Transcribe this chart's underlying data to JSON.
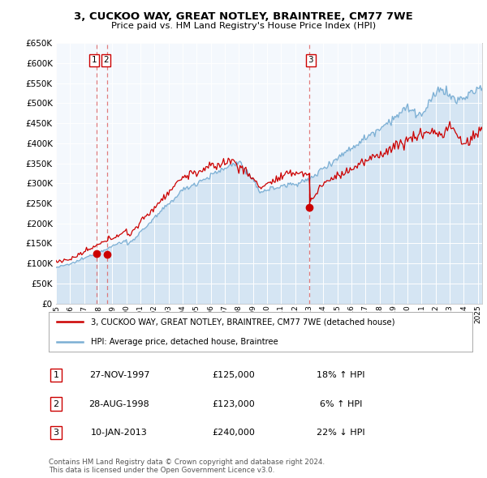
{
  "title": "3, CUCKOO WAY, GREAT NOTLEY, BRAINTREE, CM77 7WE",
  "subtitle": "Price paid vs. HM Land Registry's House Price Index (HPI)",
  "legend_label_red": "3, CUCKOO WAY, GREAT NOTLEY, BRAINTREE, CM77 7WE (detached house)",
  "legend_label_blue": "HPI: Average price, detached house, Braintree",
  "footer1": "Contains HM Land Registry data © Crown copyright and database right 2024.",
  "footer2": "This data is licensed under the Open Government Licence v3.0.",
  "sales": [
    {
      "num": 1,
      "date": "27-NOV-1997",
      "price": "£125,000",
      "pct": "18%",
      "dir": "↑ HPI"
    },
    {
      "num": 2,
      "date": "28-AUG-1998",
      "price": "£123,000",
      "pct": "6%",
      "dir": "↑ HPI"
    },
    {
      "num": 3,
      "date": "10-JAN-2013",
      "price": "£240,000",
      "pct": "22%",
      "dir": "↓ HPI"
    }
  ],
  "sale_years": [
    1997.9,
    1998.65,
    2013.03
  ],
  "sale_prices": [
    125000,
    123000,
    240000
  ],
  "ylim": [
    0,
    650000
  ],
  "xlim_start": 1995.0,
  "xlim_end": 2025.3,
  "plot_bg": "#f0f5fb",
  "red_color": "#cc0000",
  "blue_color": "#7bafd4",
  "blue_fill": "#c8ddf0",
  "grid_color": "#ffffff",
  "vline_color": "#dd6666"
}
